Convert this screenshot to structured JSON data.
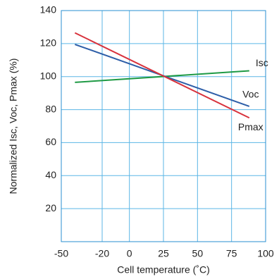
{
  "chart_data": {
    "type": "line",
    "xlabel": "Cell temperature (˚C)",
    "ylabel": "Normalized Isc, Voc, Pmax (%)",
    "x": [
      -40,
      88
    ],
    "series": [
      {
        "name": "Isc",
        "color": "#1f9a45",
        "values": [
          96.5,
          103.5
        ]
      },
      {
        "name": "Voc",
        "color": "#2d5ea8",
        "values": [
          119.5,
          82
        ]
      },
      {
        "name": "Pmax",
        "color": "#d8323c",
        "values": [
          126.5,
          75
        ]
      }
    ],
    "xlim": [
      -50,
      100
    ],
    "xticks": [
      -50,
      -20,
      0,
      25,
      50,
      75,
      100
    ],
    "ylim": [
      0,
      140
    ],
    "yticks": [
      20,
      40,
      60,
      80,
      100,
      120,
      140
    ],
    "grid": true
  }
}
